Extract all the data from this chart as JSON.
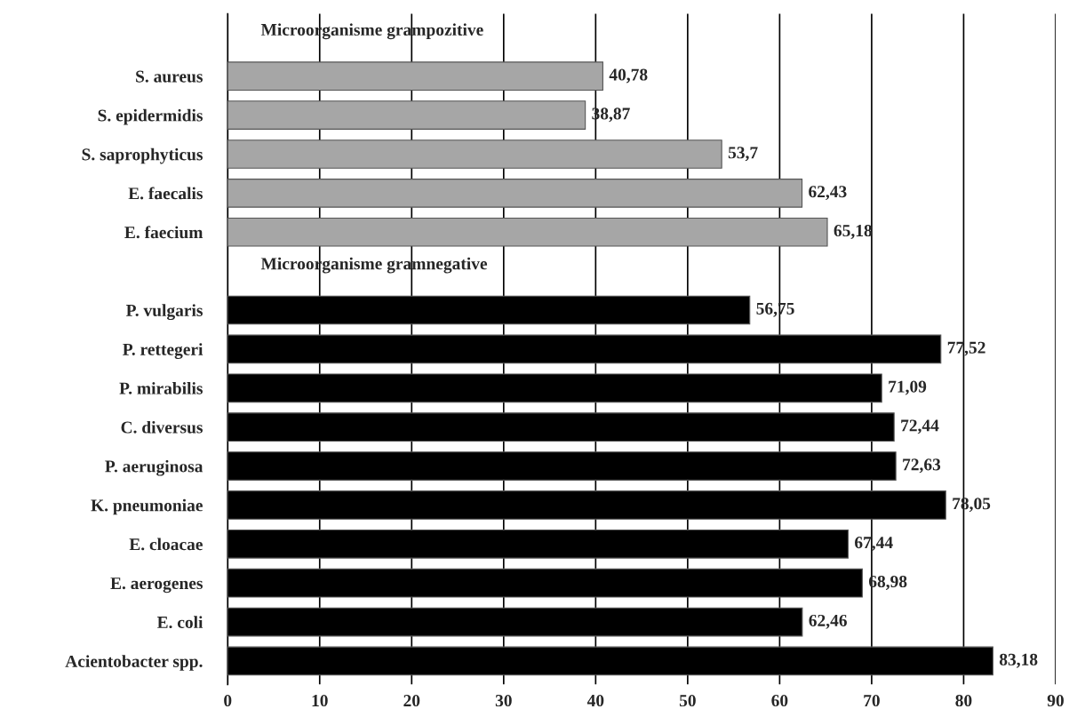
{
  "chart_data": {
    "type": "bar",
    "orientation": "horizontal",
    "categories": [
      "S. aureus",
      "S. epidermidis",
      "S. saprophyticus",
      "E. faecalis",
      "E. faecium",
      null,
      "P. vulgaris",
      "P. rettegeri",
      "P. mirabilis",
      "C. diversus",
      "P. aeruginosa",
      "K. pneumoniae",
      "E. cloacae",
      "E. aerogenes",
      "E. coli",
      "Acientobacter spp."
    ],
    "series": [
      {
        "color": "#a6a6a6",
        "values": [
          40.78,
          38.87,
          53.7,
          62.43,
          65.18,
          null,
          null,
          null,
          null,
          null,
          null,
          null,
          null,
          null,
          null,
          null
        ],
        "value_labels": [
          "40,78",
          "38,87",
          "53,7",
          "62,43",
          "65,18",
          null,
          null,
          null,
          null,
          null,
          null,
          null,
          null,
          null,
          null,
          null
        ]
      },
      {
        "color": "#000000",
        "values": [
          null,
          null,
          null,
          null,
          null,
          null,
          56.75,
          77.52,
          71.09,
          72.44,
          72.63,
          78.05,
          67.44,
          68.98,
          62.46,
          83.18
        ],
        "value_labels": [
          null,
          null,
          null,
          null,
          null,
          null,
          "56,75",
          "77,52",
          "71,09",
          "72,44",
          "72,63",
          "78,05",
          "67,44",
          "68,98",
          "62,46",
          "83,18"
        ]
      }
    ],
    "annotations": [
      "Microorganisme grampozitive",
      "Microorganisme gramnegative"
    ],
    "xlim": [
      0,
      90
    ],
    "xticks": [
      0,
      10,
      20,
      30,
      40,
      50,
      60,
      70,
      80,
      90
    ],
    "grid": "x",
    "legend": false
  }
}
